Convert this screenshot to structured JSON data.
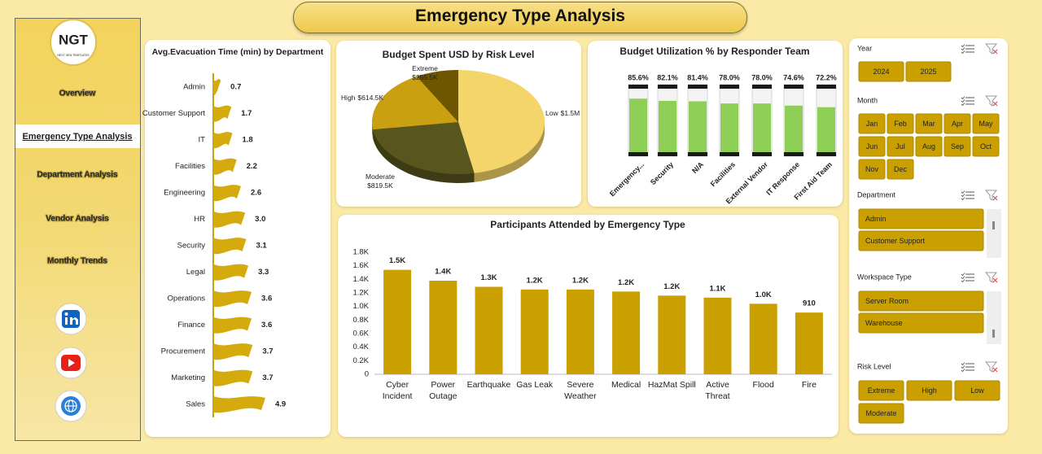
{
  "header": {
    "title": "Emergency Type Analysis"
  },
  "logo": {
    "text": "NGT",
    "tagline": "NEXT GEN TEMPLATES"
  },
  "nav": [
    "Overview",
    "Emergency Type Analysis",
    "Department Analysis",
    "Vendor Analysis",
    "Monthly Trends"
  ],
  "chart_data": [
    {
      "type": "bar",
      "orientation": "horizontal",
      "title": "Avg.Evacuation Time (min) by Department",
      "categories": [
        "Admin",
        "Customer Support",
        "IT",
        "Facilities",
        "Engineering",
        "HR",
        "Security",
        "Legal",
        "Operations",
        "Finance",
        "Procurement",
        "Marketing",
        "Sales"
      ],
      "values": [
        0.7,
        1.7,
        1.8,
        2.2,
        2.6,
        3.0,
        3.1,
        3.3,
        3.6,
        3.6,
        3.7,
        3.7,
        4.9
      ],
      "value_labels": [
        "0.7",
        "1.7",
        "1.8",
        "2.2",
        "2.6",
        "3.0",
        "3.1",
        "3.3",
        "3.6",
        "3.6",
        "3.7",
        "3.7",
        "4.9"
      ],
      "color": "#d4aa0c"
    },
    {
      "type": "pie",
      "title": "Budget Spent USD by Risk Level",
      "categories": [
        "Low",
        "Moderate",
        "High",
        "Extreme"
      ],
      "values": [
        1500000,
        819500,
        614500,
        255500
      ],
      "value_labels": [
        "$1.5M",
        "$819.5K",
        "$614.5K",
        "$255.5K"
      ],
      "colors": [
        "#f4d56a",
        "#58561c",
        "#c9a012",
        "#6e5500"
      ]
    },
    {
      "type": "bar",
      "title": "Budget Utilization % by Responder Team",
      "categories": [
        "Emergency...",
        "Security",
        "N/A",
        "Facilities",
        "External Vendor",
        "IT Response",
        "First Aid Team"
      ],
      "values": [
        85.6,
        82.1,
        81.4,
        78.0,
        78.0,
        74.6,
        72.2
      ],
      "value_labels": [
        "85.6%",
        "82.1%",
        "81.4%",
        "78.0%",
        "78.0%",
        "74.6%",
        "72.2%"
      ],
      "ylim": [
        0,
        100
      ],
      "color": "#8fcf57"
    },
    {
      "type": "bar",
      "title": "Participants Attended by Emergency Type",
      "categories": [
        "Cyber Incident",
        "Power Outage",
        "Earthquake",
        "Gas Leak",
        "Severe Weather",
        "Medical",
        "HazMat Spill",
        "Active Threat",
        "Flood",
        "Fire"
      ],
      "values": [
        1540,
        1380,
        1290,
        1250,
        1250,
        1220,
        1160,
        1130,
        1040,
        910
      ],
      "value_labels": [
        "1.5K",
        "1.4K",
        "1.3K",
        "1.2K",
        "1.2K",
        "1.2K",
        "1.2K",
        "1.1K",
        "1.0K",
        "910"
      ],
      "ylim": [
        0,
        1800
      ],
      "yticks": [
        0,
        {
          "value": 200,
          "label": "0.2K"
        },
        {
          "value": 400,
          "label": "0.4K"
        },
        {
          "value": 600,
          "label": "0.6K"
        },
        {
          "value": 800,
          "label": "0.8K"
        },
        {
          "value": 1000,
          "label": "1.0K"
        },
        {
          "value": 1200,
          "label": "1.2K"
        },
        {
          "value": 1400,
          "label": "1.4K"
        },
        {
          "value": 1600,
          "label": "1.6K"
        },
        {
          "value": 1800,
          "label": "1.8K"
        }
      ],
      "grid": false,
      "color": "#c9a000"
    }
  ],
  "slicers": [
    {
      "title": "Year",
      "items": [
        "2024",
        "2025"
      ]
    },
    {
      "title": "Month",
      "items": [
        "Jan",
        "Feb",
        "Mar",
        "Apr",
        "May",
        "Jun",
        "Jul",
        "Aug",
        "Sep",
        "Oct",
        "Nov",
        "Dec"
      ]
    },
    {
      "title": "Department",
      "items": [
        "Admin",
        "Customer Support"
      ]
    },
    {
      "title": "Workspace Type",
      "items": [
        "Server Room",
        "Warehouse"
      ]
    },
    {
      "title": "Risk Level",
      "items": [
        "Extreme",
        "High",
        "Low",
        "Moderate"
      ]
    }
  ]
}
